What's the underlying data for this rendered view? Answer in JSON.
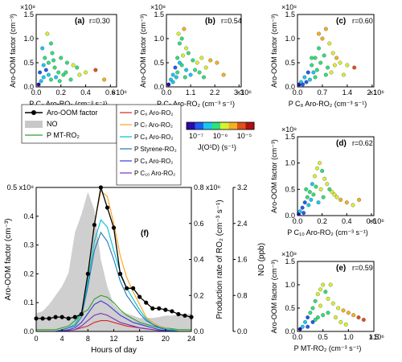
{
  "figure": {
    "colorbar": {
      "label": "J(O¹D) (s⁻¹)",
      "ticks": [
        "10⁻⁷",
        "10⁻⁶",
        "10⁻⁵"
      ],
      "colors": [
        "#2b0aa8",
        "#1f5cf0",
        "#18c7f0",
        "#2ee07a",
        "#d8f030",
        "#f4b020",
        "#e0501a",
        "#b01010"
      ]
    },
    "legend": {
      "left": [
        {
          "label": "Aro-OOM   factor",
          "kind": "line-marker",
          "color": "#000000"
        },
        {
          "label": "NO",
          "kind": "area",
          "color": "#c8c8c8"
        },
        {
          "label": "P MT-RO₂",
          "kind": "line",
          "color": "#2ca02c"
        }
      ],
      "right": [
        {
          "label": "P C₆ Aro-RO₂",
          "color": "#d62728"
        },
        {
          "label": "P C₇ Aro-RO₂",
          "color": "#ff9f1c"
        },
        {
          "label": "P C₈ Aro-RO₂",
          "color": "#00bcd4"
        },
        {
          "label": "P Styrene-RO₂",
          "color": "#1f77b4"
        },
        {
          "label": "P C₉ Aro-RO₂",
          "color": "#3b3bd6"
        },
        {
          "label": "P C₁₀ Aro-RO₂",
          "color": "#7b2fbf"
        }
      ]
    }
  },
  "chart_data": [
    {
      "panel": "(a)",
      "type": "scatter",
      "annotation": "r=0.30",
      "xlabel": "P C₆ Aro-RO₂ (cm⁻³ s⁻¹)",
      "ylabel": "Aro-OOM factor (cm⁻³)",
      "xticks": [
        "0.0",
        "0.2",
        "0.4",
        "0.6"
      ],
      "x_multiplier": "×10⁶",
      "yticks": [
        "0.0",
        "0.5",
        "1.0",
        "1.5"
      ],
      "y_multiplier": "×10⁸",
      "xlim": [
        0,
        0.65
      ],
      "ylim": [
        0,
        1.5
      ],
      "color_by": "J(O¹D)",
      "points": [
        [
          0.02,
          0.05
        ],
        [
          0.04,
          0.12
        ],
        [
          0.06,
          0.2
        ],
        [
          0.08,
          0.35
        ],
        [
          0.1,
          0.5
        ],
        [
          0.12,
          0.9
        ],
        [
          0.05,
          0.8
        ],
        [
          0.15,
          0.4
        ],
        [
          0.18,
          0.3
        ],
        [
          0.2,
          0.6
        ],
        [
          0.25,
          0.5
        ],
        [
          0.3,
          0.45
        ],
        [
          0.35,
          0.25
        ],
        [
          0.4,
          0.3
        ],
        [
          0.48,
          0.35
        ],
        [
          0.55,
          0.15
        ],
        [
          0.03,
          0.3
        ],
        [
          0.07,
          0.6
        ],
        [
          0.09,
          1.1
        ],
        [
          0.13,
          0.7
        ],
        [
          0.16,
          0.2
        ],
        [
          0.22,
          0.25
        ],
        [
          0.28,
          0.15
        ],
        [
          0.33,
          0.4
        ],
        [
          0.12,
          0.15
        ],
        [
          0.06,
          0.45
        ],
        [
          0.1,
          0.25
        ],
        [
          0.19,
          0.12
        ],
        [
          0.24,
          0.3
        ],
        [
          0.14,
          0.55
        ]
      ]
    },
    {
      "panel": "(b)",
      "type": "scatter",
      "annotation": "r=0.54",
      "xlabel": "P C₇ Aro-RO₂ (cm⁻³ s⁻¹)",
      "ylabel": "Aro-OOM factor (cm⁻³)",
      "xticks": [
        "0.0",
        "1.1",
        "2.2",
        "3.3"
      ],
      "x_multiplier": "×10⁶",
      "yticks": [
        "0.0",
        "0.5",
        "1.0",
        "1.5"
      ],
      "y_multiplier": "×10⁸",
      "xlim": [
        0,
        3.4
      ],
      "ylim": [
        0,
        1.5
      ],
      "color_by": "J(O¹D)",
      "points": [
        [
          0.1,
          0.05
        ],
        [
          0.2,
          0.15
        ],
        [
          0.3,
          0.25
        ],
        [
          0.4,
          0.4
        ],
        [
          0.5,
          0.6
        ],
        [
          0.6,
          0.9
        ],
        [
          0.7,
          1.0
        ],
        [
          0.8,
          1.2
        ],
        [
          0.9,
          0.8
        ],
        [
          1.0,
          0.7
        ],
        [
          1.2,
          0.55
        ],
        [
          1.4,
          0.5
        ],
        [
          1.6,
          0.6
        ],
        [
          1.8,
          0.4
        ],
        [
          2.0,
          0.55
        ],
        [
          2.3,
          0.5
        ],
        [
          2.6,
          0.25
        ],
        [
          0.5,
          0.3
        ],
        [
          0.7,
          0.45
        ],
        [
          0.9,
          0.35
        ],
        [
          1.1,
          0.25
        ],
        [
          0.3,
          0.1
        ],
        [
          0.45,
          0.2
        ],
        [
          0.6,
          0.5
        ],
        [
          0.75,
          0.65
        ],
        [
          1.3,
          0.35
        ],
        [
          1.5,
          0.3
        ],
        [
          0.85,
          0.2
        ],
        [
          0.55,
          1.1
        ],
        [
          1.7,
          0.2
        ]
      ]
    },
    {
      "panel": "(c)",
      "type": "scatter",
      "annotation": "r=0.60",
      "xlabel": "P C₈ Aro-RO₂ (cm⁻³ s⁻¹)",
      "ylabel": "Aro-OOM factor (cm⁻³)",
      "xticks": [
        "0.0",
        "0.7",
        "1.4",
        "2.1"
      ],
      "x_multiplier": "×10⁶",
      "yticks": [
        "0.0",
        "0.5",
        "1.0",
        "1.5"
      ],
      "y_multiplier": "×10⁸",
      "xlim": [
        0,
        2.15
      ],
      "ylim": [
        0,
        1.5
      ],
      "color_by": "J(O¹D)",
      "points": [
        [
          0.05,
          0.05
        ],
        [
          0.1,
          0.1
        ],
        [
          0.2,
          0.2
        ],
        [
          0.3,
          0.3
        ],
        [
          0.4,
          0.45
        ],
        [
          0.5,
          0.6
        ],
        [
          0.6,
          0.8
        ],
        [
          0.7,
          1.0
        ],
        [
          0.8,
          1.2
        ],
        [
          0.9,
          0.9
        ],
        [
          1.0,
          0.7
        ],
        [
          1.1,
          0.6
        ],
        [
          1.2,
          0.5
        ],
        [
          1.4,
          0.45
        ],
        [
          1.6,
          0.4
        ],
        [
          0.35,
          0.15
        ],
        [
          0.45,
          0.3
        ],
        [
          0.55,
          0.35
        ],
        [
          0.65,
          0.5
        ],
        [
          0.75,
          0.65
        ],
        [
          0.85,
          0.4
        ],
        [
          0.95,
          0.3
        ],
        [
          0.25,
          0.1
        ],
        [
          1.3,
          0.25
        ],
        [
          0.6,
          1.1
        ],
        [
          0.8,
          0.25
        ],
        [
          1.05,
          0.45
        ],
        [
          0.5,
          0.2
        ],
        [
          0.4,
          0.6
        ],
        [
          0.15,
          0.05
        ]
      ]
    },
    {
      "panel": "(d)",
      "type": "scatter",
      "annotation": "r=0.62",
      "xlabel": "P C₁₀ Aro-RO₂ (cm⁻³ s⁻¹)",
      "ylabel": "Aro-OOM factor (cm⁻³)",
      "xticks": [
        "0.0",
        "0.2",
        "0.4",
        "0.6"
      ],
      "x_multiplier": "×10⁶",
      "yticks": [
        "0.0",
        "0.5",
        "1.0",
        "1.5"
      ],
      "y_multiplier": "×10⁸",
      "xlim": [
        0,
        0.62
      ],
      "ylim": [
        0,
        1.5
      ],
      "color_by": "J(O¹D)",
      "points": [
        [
          0.01,
          0.03
        ],
        [
          0.02,
          0.08
        ],
        [
          0.04,
          0.15
        ],
        [
          0.06,
          0.25
        ],
        [
          0.08,
          0.35
        ],
        [
          0.1,
          0.45
        ],
        [
          0.12,
          0.6
        ],
        [
          0.14,
          0.75
        ],
        [
          0.16,
          0.9
        ],
        [
          0.18,
          1.0
        ],
        [
          0.2,
          0.85
        ],
        [
          0.22,
          0.7
        ],
        [
          0.24,
          0.6
        ],
        [
          0.26,
          0.5
        ],
        [
          0.28,
          0.45
        ],
        [
          0.3,
          0.4
        ],
        [
          0.32,
          0.35
        ],
        [
          0.35,
          0.3
        ],
        [
          0.4,
          0.25
        ],
        [
          0.45,
          0.2
        ],
        [
          0.5,
          0.3
        ],
        [
          0.07,
          0.5
        ],
        [
          0.09,
          0.2
        ],
        [
          0.11,
          0.3
        ],
        [
          0.13,
          0.4
        ],
        [
          0.15,
          0.55
        ],
        [
          0.17,
          0.25
        ],
        [
          0.19,
          0.5
        ],
        [
          0.21,
          0.35
        ],
        [
          0.05,
          0.05
        ]
      ]
    },
    {
      "panel": "(e)",
      "type": "scatter",
      "annotation": "r=0.59",
      "xlabel": "P MT-RO₂ (cm⁻³ s⁻¹)",
      "ylabel": "Aro-OOM factor (cm⁻³)",
      "xticks": [
        "0.0",
        "0.5",
        "1.0",
        "1.5"
      ],
      "x_multiplier": "×10⁶",
      "yticks": [
        "0.0",
        "0.5",
        "1.0",
        "1.5"
      ],
      "y_multiplier": "×10⁸",
      "xlim": [
        0,
        1.5
      ],
      "ylim": [
        0,
        1.5
      ],
      "color_by": "J(O¹D)",
      "points": [
        [
          0.05,
          0.05
        ],
        [
          0.1,
          0.1
        ],
        [
          0.15,
          0.2
        ],
        [
          0.2,
          0.3
        ],
        [
          0.25,
          0.4
        ],
        [
          0.3,
          0.5
        ],
        [
          0.35,
          0.65
        ],
        [
          0.4,
          0.8
        ],
        [
          0.45,
          0.9
        ],
        [
          0.5,
          1.0
        ],
        [
          0.55,
          0.85
        ],
        [
          0.6,
          0.7
        ],
        [
          0.7,
          0.6
        ],
        [
          0.8,
          0.5
        ],
        [
          0.9,
          0.45
        ],
        [
          1.0,
          0.4
        ],
        [
          1.1,
          0.35
        ],
        [
          1.2,
          0.3
        ],
        [
          1.3,
          0.25
        ],
        [
          0.2,
          0.1
        ],
        [
          0.3,
          0.2
        ],
        [
          0.4,
          0.3
        ],
        [
          0.5,
          0.35
        ],
        [
          0.6,
          0.4
        ],
        [
          0.75,
          0.3
        ],
        [
          0.85,
          0.2
        ],
        [
          0.65,
          1.0
        ],
        [
          0.45,
          0.55
        ],
        [
          0.35,
          0.25
        ],
        [
          0.95,
          0.15
        ]
      ]
    },
    {
      "panel": "(f)",
      "type": "line",
      "xlabel": "Hours of day",
      "xticks": [
        "0",
        "4",
        "8",
        "12",
        "16",
        "20",
        "24"
      ],
      "xlim": [
        0,
        24
      ],
      "axes": {
        "left": {
          "label": "Aro-OOM  factor (cm⁻³)",
          "ticks": [
            "0.0",
            "0.1",
            "0.2",
            "0.3",
            "0.4",
            "0.5 x10⁸"
          ],
          "lim": [
            0,
            0.5
          ]
        },
        "right1": {
          "label": "Production rate of RO₂ (cm⁻³ s⁻¹)",
          "ticks": [
            "0.0",
            "0.2",
            "0.4",
            "0.6",
            "0.8 x10⁶"
          ],
          "lim": [
            0,
            0.8
          ]
        },
        "right2": {
          "label": "NO (ppb)",
          "ticks": [
            "0.0",
            "0.8",
            "1.6",
            "2.4",
            "3.2"
          ],
          "lim": [
            0,
            3.2
          ]
        }
      },
      "x": [
        0,
        1,
        2,
        3,
        4,
        5,
        6,
        7,
        8,
        9,
        10,
        11,
        12,
        13,
        14,
        15,
        16,
        17,
        18,
        19,
        20,
        21,
        22,
        23,
        24
      ],
      "series": [
        {
          "name": "Aro-OOM   factor",
          "axis": "left",
          "values": [
            0.045,
            0.045,
            0.045,
            0.05,
            0.05,
            0.045,
            0.05,
            0.06,
            0.2,
            0.37,
            0.5,
            0.43,
            0.36,
            0.2,
            0.15,
            0.15,
            0.12,
            0.1,
            0.08,
            0.08,
            0.075,
            0.07,
            0.06,
            0.055,
            0.05
          ]
        },
        {
          "name": "NO",
          "axis": "right2",
          "values": [
            0.4,
            0.45,
            0.6,
            0.8,
            1.0,
            1.3,
            2.2,
            2.6,
            3.1,
            2.7,
            1.6,
            1.0,
            0.6,
            0.45,
            0.4,
            0.35,
            0.3,
            0.3,
            0.3,
            0.32,
            0.35,
            0.35,
            0.38,
            0.38,
            0.4
          ]
        },
        {
          "name": "P MT-RO₂",
          "axis": "right1",
          "values": [
            0.01,
            0.01,
            0.01,
            0.01,
            0.02,
            0.03,
            0.06,
            0.1,
            0.12,
            0.18,
            0.2,
            0.19,
            0.16,
            0.12,
            0.09,
            0.07,
            0.05,
            0.04,
            0.03,
            0.02,
            0.02,
            0.015,
            0.01,
            0.01,
            0.01
          ]
        },
        {
          "name": "P C₆ Aro-RO₂",
          "axis": "right1",
          "values": [
            0,
            0,
            0,
            0,
            0,
            0.005,
            0.01,
            0.02,
            0.03,
            0.05,
            0.06,
            0.06,
            0.05,
            0.04,
            0.03,
            0.025,
            0.02,
            0.015,
            0.01,
            0.005,
            0.005,
            0,
            0,
            0,
            0
          ]
        },
        {
          "name": "P C₇ Aro-RO₂",
          "axis": "right1",
          "values": [
            0,
            0,
            0,
            0,
            0.01,
            0.02,
            0.04,
            0.1,
            0.3,
            0.6,
            0.78,
            0.75,
            0.6,
            0.42,
            0.3,
            0.22,
            0.15,
            0.08,
            0.05,
            0.03,
            0.02,
            0.01,
            0,
            0,
            0
          ]
        },
        {
          "name": "P C₈ Aro-RO₂",
          "axis": "right1",
          "values": [
            0,
            0,
            0,
            0,
            0.01,
            0.02,
            0.04,
            0.1,
            0.28,
            0.5,
            0.62,
            0.58,
            0.45,
            0.33,
            0.24,
            0.18,
            0.12,
            0.07,
            0.04,
            0.025,
            0.015,
            0.01,
            0,
            0,
            0
          ]
        },
        {
          "name": "P Styrene-RO₂",
          "axis": "right1",
          "values": [
            0,
            0,
            0,
            0,
            0.01,
            0.02,
            0.03,
            0.08,
            0.25,
            0.45,
            0.55,
            0.5,
            0.4,
            0.28,
            0.2,
            0.15,
            0.1,
            0.06,
            0.04,
            0.02,
            0.01,
            0.005,
            0,
            0,
            0
          ]
        },
        {
          "name": "P C₉ Aro-RO₂",
          "axis": "right1",
          "values": [
            0,
            0,
            0,
            0,
            0.005,
            0.01,
            0.02,
            0.05,
            0.1,
            0.15,
            0.17,
            0.15,
            0.12,
            0.09,
            0.07,
            0.05,
            0.04,
            0.03,
            0.02,
            0.01,
            0.005,
            0,
            0,
            0,
            0
          ]
        },
        {
          "name": "P C₁₀ Aro-RO₂",
          "axis": "right1",
          "values": [
            0,
            0,
            0,
            0,
            0,
            0.005,
            0.01,
            0.03,
            0.06,
            0.09,
            0.1,
            0.09,
            0.07,
            0.05,
            0.04,
            0.03,
            0.02,
            0.015,
            0.01,
            0.005,
            0,
            0,
            0,
            0,
            0
          ]
        }
      ]
    }
  ]
}
